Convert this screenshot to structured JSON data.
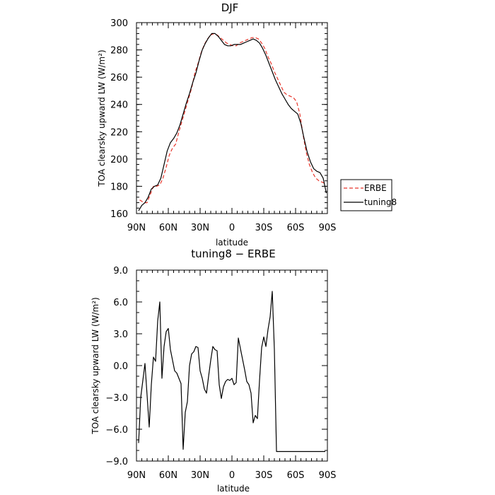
{
  "chart_data": [
    {
      "type": "line",
      "title": "DJF",
      "xlabel": "latitude",
      "ylabel": "TOA clearsky upward LW (W/m²)",
      "xlim": [
        -90,
        90
      ],
      "ylim": [
        160,
        300
      ],
      "x_tick_values": [
        -90,
        -60,
        -30,
        0,
        30,
        60,
        90
      ],
      "x_tick_labels": [
        "90N",
        "60N",
        "30N",
        "0",
        "30S",
        "60S",
        "90S"
      ],
      "y_tick_values": [
        160,
        180,
        200,
        220,
        240,
        260,
        280,
        300
      ],
      "y_tick_labels": [
        "160",
        "180",
        "200",
        "220",
        "240",
        "260",
        "280",
        "300"
      ],
      "legend_position": "right",
      "series": [
        {
          "name": "ERBE",
          "color": "#e8352a",
          "dash": "dashed",
          "x": [
            -87,
            -83,
            -80,
            -77,
            -74,
            -71,
            -68,
            -65,
            -62,
            -59,
            -56,
            -53,
            -50,
            -47,
            -44,
            -41,
            -38,
            -35,
            -32,
            -29,
            -26,
            -23,
            -20,
            -17,
            -14,
            -11,
            -8,
            -5,
            -2,
            1,
            4,
            7,
            10,
            13,
            16,
            19,
            22,
            25,
            28,
            31,
            34,
            37,
            40,
            43,
            46,
            49,
            52,
            55,
            58,
            61,
            64,
            67,
            70,
            73,
            76,
            79,
            82,
            85,
            88
          ],
          "y": [
            170,
            168,
            168,
            174,
            180,
            180,
            181,
            186,
            194,
            203,
            208,
            211,
            220,
            228,
            236,
            244,
            252,
            263,
            270,
            278,
            284,
            288,
            291,
            292,
            291,
            289,
            287,
            285,
            284,
            283,
            283,
            285,
            286,
            287,
            288,
            289,
            289,
            288,
            285,
            281,
            275,
            270,
            264,
            259,
            254,
            249,
            247,
            246,
            245,
            242,
            233,
            218,
            205,
            196,
            190,
            186,
            184,
            183,
            182
          ]
        },
        {
          "name": "tuning8",
          "color": "#000000",
          "dash": "solid",
          "x": [
            -88,
            -85,
            -82,
            -79,
            -76,
            -73,
            -70,
            -67,
            -64,
            -61,
            -58,
            -55,
            -52,
            -49,
            -46,
            -43,
            -40,
            -37,
            -34,
            -31,
            -28,
            -25,
            -22,
            -19,
            -16,
            -13,
            -10,
            -7,
            -4,
            -1,
            2,
            5,
            8,
            11,
            14,
            17,
            20,
            23,
            26,
            29,
            32,
            35,
            38,
            41,
            44,
            47,
            50,
            53,
            56,
            59,
            62,
            65,
            68,
            71,
            74,
            77,
            80,
            83,
            86,
            89
          ],
          "y": [
            162,
            166,
            168,
            172,
            178,
            180,
            181,
            186,
            196,
            206,
            212,
            215,
            219,
            225,
            233,
            241,
            248,
            256,
            263,
            272,
            280,
            285,
            289,
            292,
            292,
            290,
            287,
            284,
            283,
            283,
            284,
            284,
            284,
            285,
            286,
            287,
            288,
            287,
            285,
            281,
            276,
            270,
            264,
            258,
            253,
            248,
            244,
            240,
            237,
            235,
            233,
            226,
            215,
            205,
            198,
            193,
            191,
            190,
            186,
            175
          ]
        }
      ]
    },
    {
      "type": "line",
      "title": "tuning8 − ERBE",
      "xlabel": "latitude",
      "ylabel": "TOA clearsky upward LW (W/m²)",
      "xlim": [
        -90,
        90
      ],
      "ylim": [
        -9,
        9
      ],
      "x_tick_values": [
        -90,
        -60,
        -30,
        0,
        30,
        60,
        90
      ],
      "x_tick_labels": [
        "90N",
        "60N",
        "30N",
        "0",
        "30S",
        "60S",
        "90S"
      ],
      "y_tick_values": [
        -9,
        -6,
        -3,
        0,
        3,
        6,
        9
      ],
      "y_tick_labels": [
        "−9.0",
        "−6.0",
        "−3.0",
        "0.0",
        "3.0",
        "6.0",
        "9.0"
      ],
      "series": [
        {
          "color": "#000000",
          "dash": "solid",
          "x": [
            -88,
            -86,
            -84,
            -82,
            -80,
            -78,
            -76,
            -74,
            -72,
            -70,
            -68,
            -66,
            -64,
            -62,
            -60,
            -58,
            -56,
            -54,
            -52,
            -50,
            -48,
            -46,
            -44,
            -42,
            -40,
            -38,
            -36,
            -34,
            -32,
            -30,
            -28,
            -26,
            -24,
            -22,
            -20,
            -18,
            -16,
            -14,
            -12,
            -10,
            -8,
            -6,
            -4,
            -2,
            0,
            2,
            4,
            6,
            8,
            10,
            12,
            14,
            16,
            18,
            20,
            22,
            24,
            26,
            28,
            30,
            32,
            34,
            36,
            38,
            40,
            42,
            44,
            46,
            48,
            50,
            52,
            54,
            56,
            58,
            60,
            62,
            64,
            66,
            68,
            70,
            72,
            74,
            76,
            78,
            80,
            82,
            84,
            86,
            88
          ],
          "y": [
            -7.3,
            -3.0,
            -1.4,
            0.2,
            -2.8,
            -5.8,
            -1.8,
            0.8,
            0.4,
            4.2,
            6.0,
            -1.2,
            1.8,
            3.2,
            3.5,
            1.5,
            0.5,
            -0.5,
            -0.7,
            -1.2,
            -1.7,
            -7.9,
            -4.4,
            -3.4,
            0.0,
            1.1,
            1.3,
            1.8,
            1.7,
            -0.5,
            -1.2,
            -2.2,
            -2.6,
            -1.0,
            0.5,
            1.8,
            1.5,
            1.4,
            -1.8,
            -3.1,
            -2.0,
            -1.5,
            -1.3,
            -1.4,
            -1.2,
            -1.8,
            -1.6,
            2.6,
            1.6,
            0.6,
            -0.4,
            -1.5,
            -1.8,
            -2.6,
            -5.4,
            -4.7,
            -5.0,
            -1.4,
            1.7,
            2.7,
            1.8,
            3.4,
            4.6,
            7.0,
            1.5,
            -8.1,
            -8.1,
            -8.1,
            -8.1,
            -8.1,
            -8.1,
            -8.1,
            -8.1,
            -8.1,
            -8.1,
            -8.1,
            -8.1,
            -8.1,
            -8.1,
            -8.1,
            -8.1,
            -8.1,
            -8.1,
            -8.1,
            -8.1,
            -8.1,
            -8.1,
            -8.1,
            -8.1
          ]
        }
      ]
    }
  ]
}
